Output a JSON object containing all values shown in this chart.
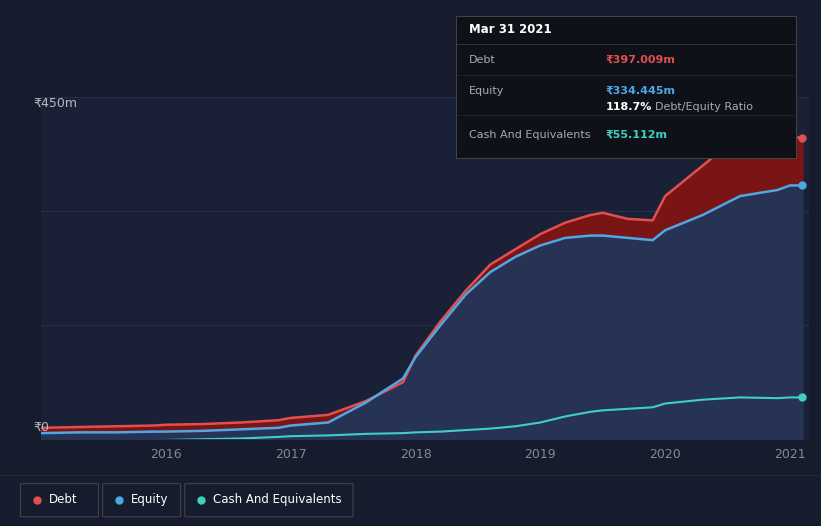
{
  "background_color": "#161b2e",
  "chart_bg_color": "#1a2035",
  "y_label_top": "₹450m",
  "y_label_bottom": "₹0",
  "x_ticks": [
    2016,
    2017,
    2018,
    2019,
    2020,
    2021
  ],
  "years": [
    2015.0,
    2015.3,
    2015.6,
    2015.9,
    2016.0,
    2016.3,
    2016.6,
    2016.9,
    2017.0,
    2017.3,
    2017.6,
    2017.9,
    2018.0,
    2018.2,
    2018.4,
    2018.6,
    2018.8,
    2019.0,
    2019.2,
    2019.4,
    2019.5,
    2019.7,
    2019.9,
    2020.0,
    2020.3,
    2020.6,
    2020.9,
    2021.0,
    2021.1
  ],
  "debt": [
    15,
    16,
    17,
    18,
    19,
    20,
    22,
    25,
    28,
    32,
    50,
    75,
    110,
    155,
    195,
    230,
    250,
    270,
    285,
    295,
    298,
    290,
    288,
    320,
    360,
    400,
    390,
    397,
    397
  ],
  "equity": [
    8,
    9,
    9,
    10,
    10,
    11,
    13,
    15,
    18,
    22,
    48,
    80,
    108,
    150,
    190,
    220,
    240,
    255,
    265,
    268,
    268,
    265,
    262,
    275,
    295,
    320,
    328,
    334,
    334
  ],
  "cash": [
    -3,
    -3,
    -2,
    -2,
    -1,
    0,
    1,
    3,
    4,
    5,
    7,
    8,
    9,
    10,
    12,
    14,
    17,
    22,
    30,
    36,
    38,
    40,
    42,
    47,
    52,
    55,
    54,
    55,
    55
  ],
  "debt_color": "#e05050",
  "equity_color": "#4da8e8",
  "cash_color": "#40d0c0",
  "debt_fill_color": "#7a1515",
  "equity_fill_color": "#263355",
  "cash_fill_color": "#183535",
  "ylim": [
    0,
    450
  ],
  "xlim_min": 2015.0,
  "xlim_max": 2021.15,
  "info_title": "Mar 31 2021",
  "info_debt_label": "Debt",
  "info_debt_value": "₹397.009m",
  "info_equity_label": "Equity",
  "info_equity_value": "₹334.445m",
  "info_ratio": "118.7%",
  "info_ratio_label": "Debt/Equity Ratio",
  "info_cash_label": "Cash And Equivalents",
  "info_cash_value": "₹55.112m",
  "legend_items": [
    "Debt",
    "Equity",
    "Cash And Equivalents"
  ],
  "legend_colors": [
    "#e05050",
    "#4da8e8",
    "#40d0c0"
  ]
}
